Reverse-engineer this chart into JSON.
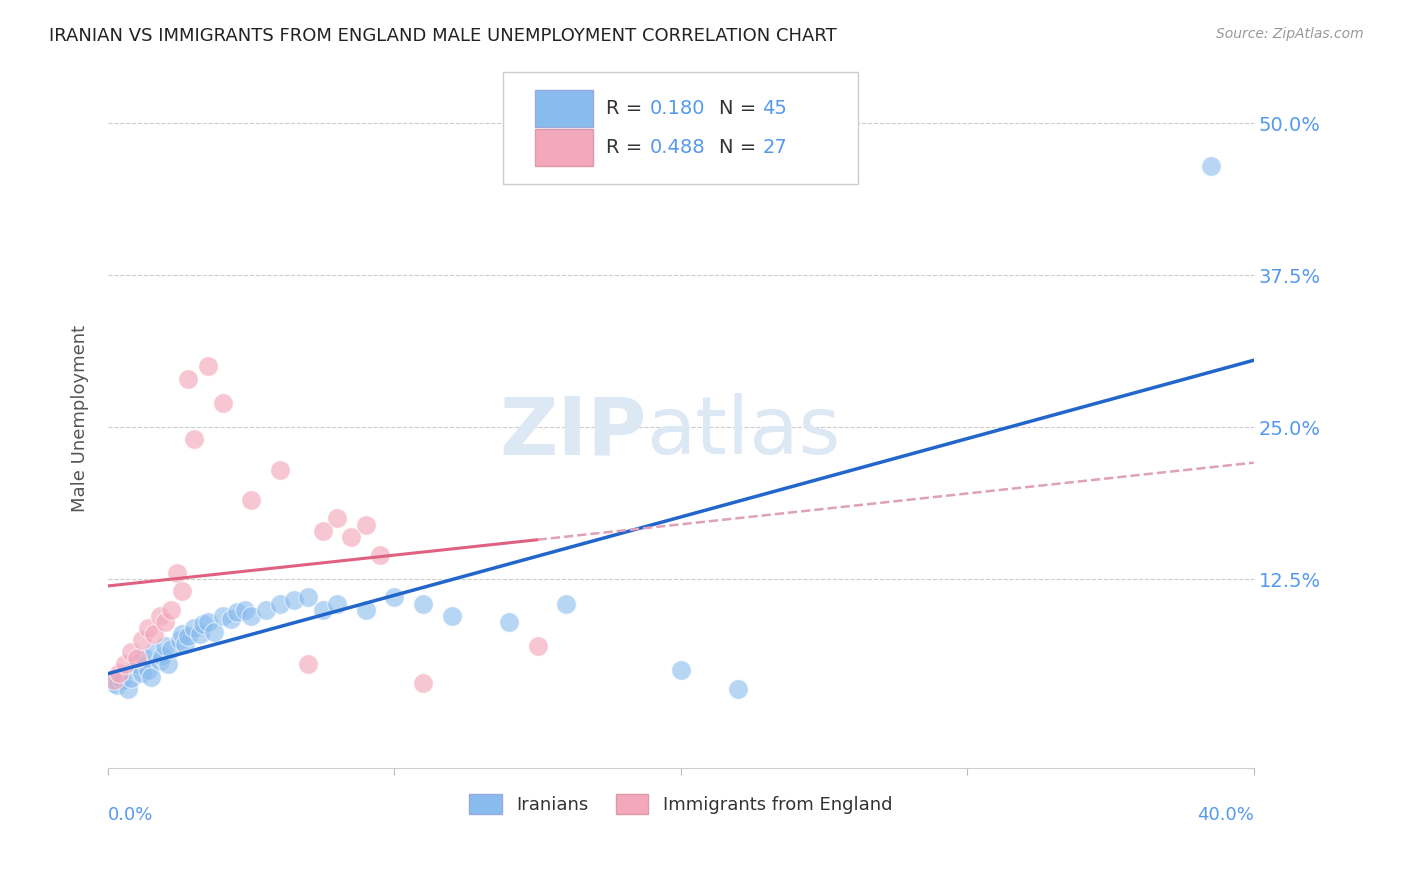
{
  "title": "IRANIAN VS IMMIGRANTS FROM ENGLAND MALE UNEMPLOYMENT CORRELATION CHART",
  "source": "Source: ZipAtlas.com",
  "ylabel": "Male Unemployment",
  "ytick_values": [
    0.125,
    0.25,
    0.375,
    0.5
  ],
  "ytick_labels": [
    "12.5%",
    "25.0%",
    "37.5%",
    "50.0%"
  ],
  "xlim": [
    0,
    0.4
  ],
  "ylim": [
    -0.03,
    0.545
  ],
  "blue_color": "#88bbee",
  "pink_color": "#f4a8bc",
  "blue_line_color": "#2266cc",
  "pink_line_color": "#e06080",
  "pink_dash_color": "#e0a0b8",
  "watermark_zip": "ZIP",
  "watermark_atlas": "atlas",
  "watermark_color": "#dde8f5",
  "background_color": "#ffffff",
  "iranians_x": [
    0.002,
    0.003,
    0.005,
    0.007,
    0.008,
    0.01,
    0.012,
    0.013,
    0.014,
    0.015,
    0.016,
    0.018,
    0.019,
    0.02,
    0.021,
    0.022,
    0.025,
    0.026,
    0.027,
    0.028,
    0.03,
    0.032,
    0.033,
    0.035,
    0.037,
    0.04,
    0.043,
    0.045,
    0.048,
    0.05,
    0.055,
    0.06,
    0.065,
    0.07,
    0.075,
    0.08,
    0.09,
    0.1,
    0.11,
    0.12,
    0.14,
    0.16,
    0.2,
    0.22,
    0.385
  ],
  "iranians_y": [
    0.04,
    0.038,
    0.042,
    0.035,
    0.044,
    0.055,
    0.048,
    0.06,
    0.05,
    0.045,
    0.065,
    0.058,
    0.062,
    0.07,
    0.055,
    0.068,
    0.075,
    0.08,
    0.072,
    0.078,
    0.085,
    0.08,
    0.088,
    0.09,
    0.082,
    0.095,
    0.092,
    0.098,
    0.1,
    0.095,
    0.1,
    0.105,
    0.108,
    0.11,
    0.1,
    0.105,
    0.1,
    0.11,
    0.105,
    0.095,
    0.09,
    0.105,
    0.05,
    0.035,
    0.465
  ],
  "england_x": [
    0.002,
    0.004,
    0.006,
    0.008,
    0.01,
    0.012,
    0.014,
    0.016,
    0.018,
    0.02,
    0.022,
    0.024,
    0.026,
    0.028,
    0.03,
    0.035,
    0.04,
    0.05,
    0.06,
    0.07,
    0.075,
    0.08,
    0.085,
    0.09,
    0.095,
    0.11,
    0.15
  ],
  "england_y": [
    0.042,
    0.048,
    0.055,
    0.065,
    0.06,
    0.075,
    0.085,
    0.08,
    0.095,
    0.09,
    0.1,
    0.13,
    0.115,
    0.29,
    0.24,
    0.3,
    0.27,
    0.19,
    0.215,
    0.055,
    0.165,
    0.175,
    0.16,
    0.17,
    0.145,
    0.04,
    0.07
  ]
}
